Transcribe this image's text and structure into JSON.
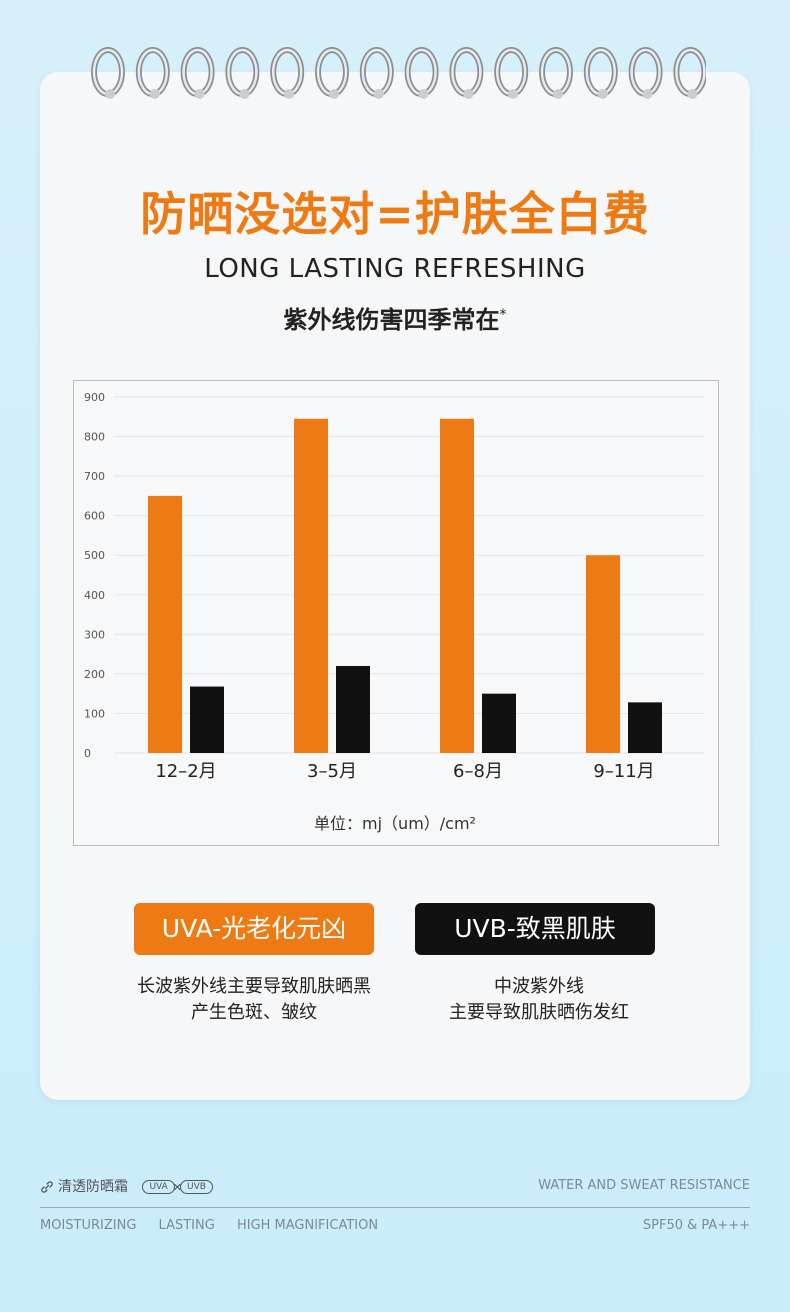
{
  "header": {
    "title": "防晒没选对=护肤全白费",
    "subtitle": "LONG LASTING  REFRESHING",
    "tagline": "紫外线伤害四季常在",
    "tagline_mark": "*"
  },
  "colors": {
    "uva": "#ee7a14",
    "uvb": "#111111",
    "title": "#ee7a14"
  },
  "chart_data": {
    "type": "bar",
    "categories": [
      "12-2月",
      "3-5月",
      "6-8月",
      "9-11月"
    ],
    "series": [
      {
        "values": [
          650,
          845,
          845,
          500
        ],
        "color": "#ee7a14"
      },
      {
        "values": [
          168,
          220,
          150,
          128
        ],
        "color": "#111111"
      }
    ],
    "ylim": [
      0,
      900
    ],
    "yticks": [
      0,
      100,
      200,
      300,
      400,
      500,
      600,
      700,
      800,
      900
    ],
    "grid": true,
    "unit_label": "单位：mj（um）/cm²"
  },
  "badges": {
    "uva": {
      "label": "UVA-光老化元凶",
      "desc_line1": "长波紫外线主要导致肌肤晒黑",
      "desc_line2": "产生色斑、皱纹"
    },
    "uvb": {
      "label": "UVB-致黑肌肤",
      "desc_line1": "中波紫外线",
      "desc_line2": "主要导致肌肤晒伤发红"
    }
  },
  "footer": {
    "product_icon": "link-icon",
    "product_name": "清透防晒霜",
    "pill_uva": "UVA",
    "pill_uvb": "UVB",
    "right_top": "WATER AND SWEAT RESISTANCE",
    "features": [
      "MOISTURIZING",
      "LASTING",
      "HIGH MAGNIFICATION"
    ],
    "right_bottom": "SPF50 & PA+++"
  }
}
